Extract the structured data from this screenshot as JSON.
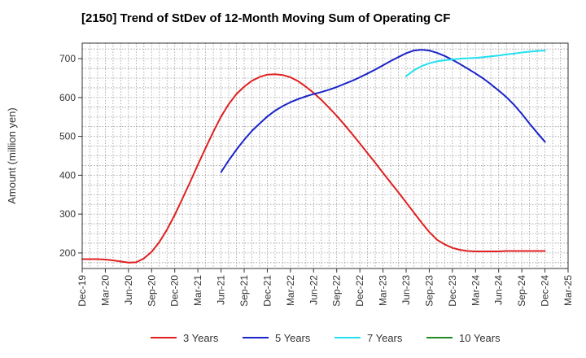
{
  "chart_data": {
    "type": "line",
    "title": "[2150]  Trend of StDev of 12-Month Moving Sum of Operating CF",
    "xlabel": "",
    "ylabel": "Amount (million yen)",
    "x_ticks": [
      "Dec-19",
      "Mar-20",
      "Jun-20",
      "Sep-20",
      "Dec-20",
      "Mar-21",
      "Jun-21",
      "Sep-21",
      "Dec-21",
      "Mar-22",
      "Jun-22",
      "Sep-22",
      "Dec-22",
      "Mar-23",
      "Jun-23",
      "Sep-23",
      "Dec-23",
      "Mar-24",
      "Jun-24",
      "Sep-24",
      "Dec-24",
      "Mar-25"
    ],
    "y_ticks": [
      200,
      300,
      400,
      500,
      600,
      700
    ],
    "ylim": [
      160,
      740
    ],
    "grid": true,
    "legend_position": "bottom",
    "series": [
      {
        "name": "3 Years",
        "color": "#e02020",
        "x": [
          "Dec-19",
          "Jan-20",
          "Feb-20",
          "Mar-20",
          "Apr-20",
          "May-20",
          "Jun-20",
          "Jul-20",
          "Aug-20",
          "Sep-20",
          "Oct-20",
          "Nov-20",
          "Dec-20",
          "Jan-21",
          "Feb-21",
          "Mar-21",
          "Apr-21",
          "May-21",
          "Jun-21",
          "Jul-21",
          "Aug-21",
          "Sep-21",
          "Oct-21",
          "Nov-21",
          "Dec-21",
          "Jan-22",
          "Feb-22",
          "Mar-22",
          "Apr-22",
          "May-22",
          "Jun-22",
          "Jul-22",
          "Aug-22",
          "Sep-22",
          "Oct-22",
          "Nov-22",
          "Dec-22",
          "Jan-23",
          "Feb-23",
          "Mar-23",
          "Apr-23",
          "May-23",
          "Jun-23",
          "Jul-23",
          "Aug-23",
          "Sep-23",
          "Oct-23",
          "Nov-23",
          "Dec-23",
          "Jan-24",
          "Feb-24",
          "Mar-24",
          "Apr-24",
          "May-24",
          "Jun-24",
          "Jul-24",
          "Aug-24",
          "Sep-24",
          "Oct-24",
          "Nov-24",
          "Dec-24"
        ],
        "values": [
          184,
          184,
          184,
          183,
          181,
          178,
          175,
          176,
          186,
          203,
          228,
          260,
          298,
          340,
          383,
          427,
          470,
          512,
          551,
          583,
          609,
          628,
          643,
          653,
          659,
          660,
          658,
          652,
          642,
          628,
          612,
          594,
          574,
          553,
          530,
          506,
          482,
          457,
          432,
          406,
          381,
          356,
          330,
          304,
          278,
          254,
          234,
          222,
          213,
          208,
          205,
          204,
          204,
          204,
          204,
          205,
          205,
          205,
          205,
          205,
          205
        ]
      },
      {
        "name": "5 Years",
        "color": "#1a24c8",
        "x": [
          "Jun-21",
          "Jul-21",
          "Aug-21",
          "Sep-21",
          "Oct-21",
          "Nov-21",
          "Dec-21",
          "Jan-22",
          "Feb-22",
          "Mar-22",
          "Apr-22",
          "May-22",
          "Jun-22",
          "Jul-22",
          "Aug-22",
          "Sep-22",
          "Oct-22",
          "Nov-22",
          "Dec-22",
          "Jan-23",
          "Feb-23",
          "Mar-23",
          "Apr-23",
          "May-23",
          "Jun-23",
          "Jul-23",
          "Aug-23",
          "Sep-23",
          "Oct-23",
          "Nov-23",
          "Dec-23",
          "Jan-24",
          "Feb-24",
          "Mar-24",
          "Apr-24",
          "May-24",
          "Jun-24",
          "Jul-24",
          "Aug-24",
          "Sep-24",
          "Oct-24",
          "Nov-24",
          "Dec-24"
        ],
        "values": [
          408,
          438,
          466,
          491,
          514,
          533,
          551,
          566,
          578,
          588,
          596,
          603,
          609,
          614,
          620,
          627,
          635,
          643,
          652,
          662,
          672,
          683,
          694,
          704,
          714,
          721,
          723,
          721,
          715,
          707,
          697,
          686,
          674,
          662,
          649,
          634,
          618,
          601,
          581,
          558,
          533,
          509,
          486
        ]
      },
      {
        "name": "7 Years",
        "color": "#22e0f0",
        "x": [
          "Jun-23",
          "Jul-23",
          "Aug-23",
          "Sep-23",
          "Oct-23",
          "Nov-23",
          "Dec-23",
          "Jan-24",
          "Feb-24",
          "Mar-24",
          "Apr-24",
          "May-24",
          "Jun-24",
          "Jul-24",
          "Aug-24",
          "Sep-24",
          "Oct-24",
          "Nov-24",
          "Dec-24"
        ],
        "values": [
          655,
          670,
          681,
          688,
          693,
          696,
          698,
          700,
          701,
          702,
          704,
          706,
          708,
          711,
          713,
          716,
          718,
          720,
          721
        ]
      },
      {
        "name": "10 Years",
        "color": "#208a20",
        "x": [],
        "values": []
      }
    ]
  }
}
